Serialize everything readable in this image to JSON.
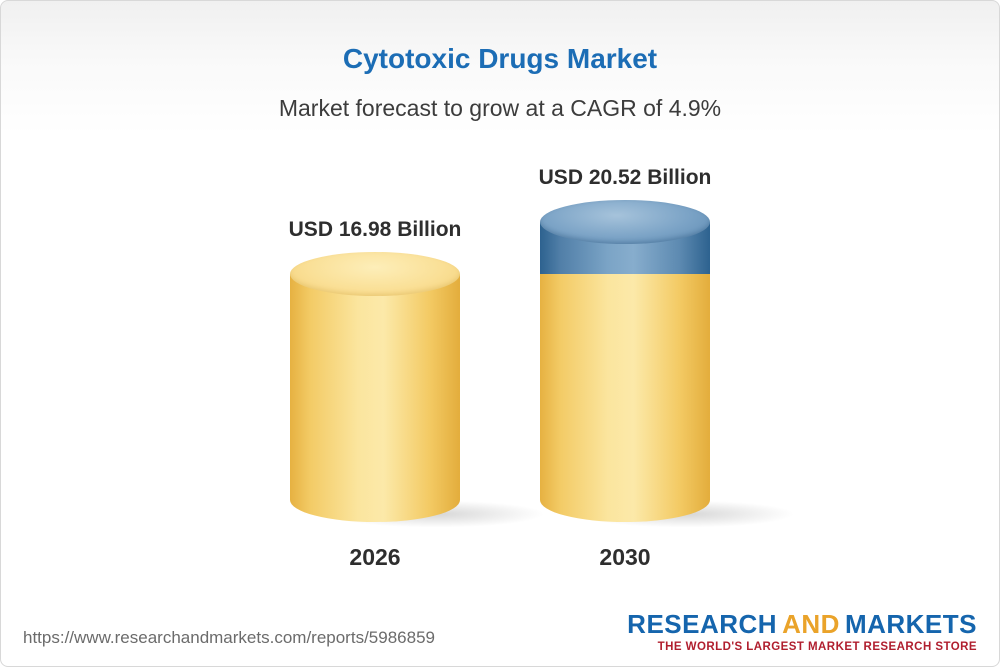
{
  "header": {
    "title": "Cytotoxic Drugs Market",
    "subtitle": "Market forecast to grow at a CAGR of 4.9%"
  },
  "chart_data": {
    "type": "bar",
    "title": "Cytotoxic Drugs Market",
    "subtitle": "Market forecast to grow at a CAGR of 4.9%",
    "categories": [
      "2026",
      "2030"
    ],
    "values": [
      16.98,
      20.52
    ],
    "unit": "USD Billion",
    "value_labels": [
      "USD 16.98 Billion",
      "USD 20.52 Billion"
    ],
    "cagr_percent": 4.9,
    "ylim": [
      0,
      22
    ],
    "grid": false,
    "legend": "none",
    "style": "3d-cylinder",
    "colors": {
      "base_segment": "#F5CD64",
      "growth_segment": "#5C8CB5",
      "title_blue": "#1C6DB5"
    }
  },
  "footer": {
    "url": "https://www.researchandmarkets.com/reports/5986859",
    "logo": {
      "part1": "RESEARCH",
      "part2": "AND",
      "part3": "MARKETS",
      "tagline": "THE WORLD'S LARGEST MARKET RESEARCH STORE"
    }
  }
}
